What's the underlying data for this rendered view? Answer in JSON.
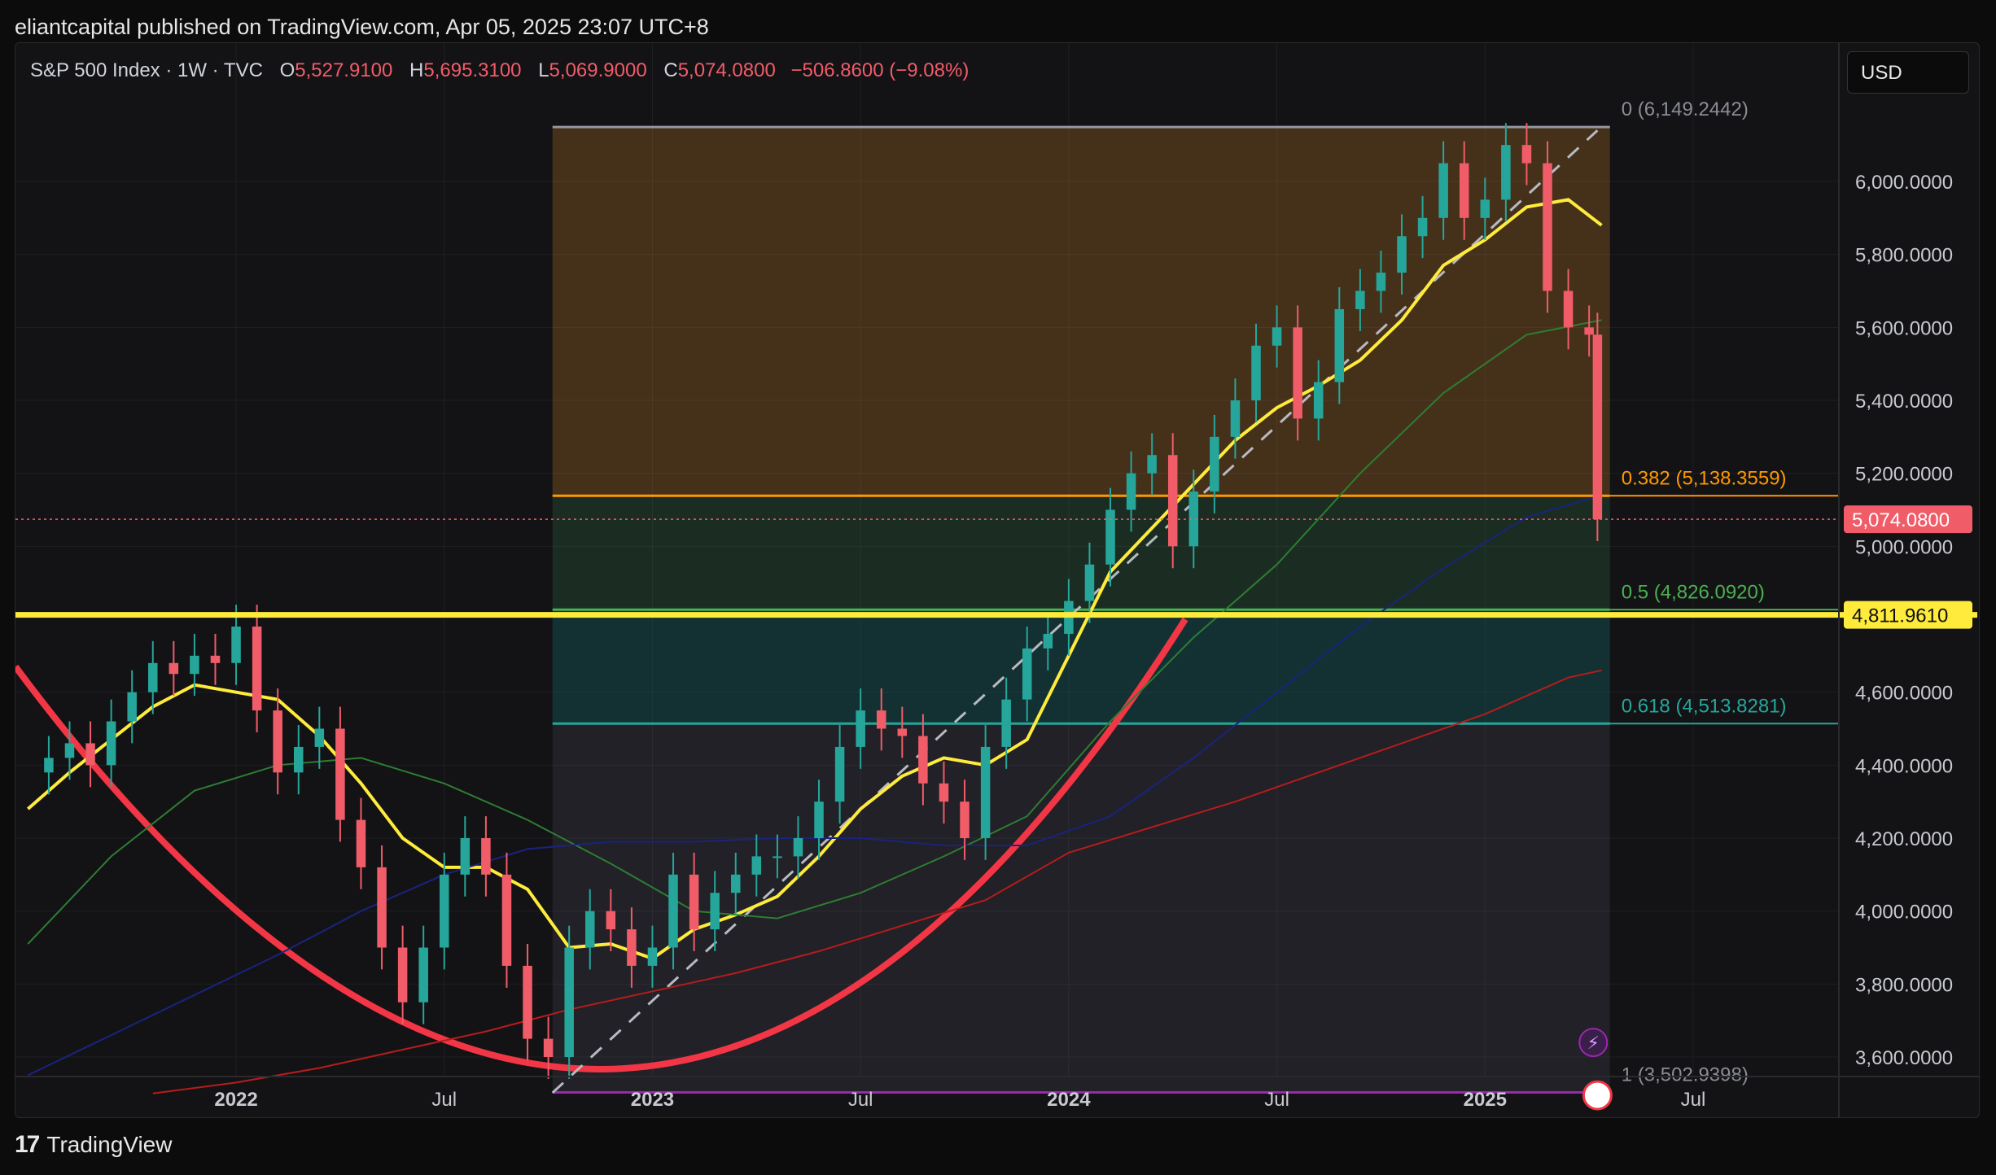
{
  "header": {
    "publisher": "eliantcapital published on TradingView.com, Apr 05, 2025 23:07 UTC+8"
  },
  "legend": {
    "symbol": "S&P 500 Index · 1W · TVC",
    "o_label": "O",
    "o_value": "5,527.9100",
    "h_label": "H",
    "h_value": "5,695.3100",
    "l_label": "L",
    "l_value": "5,069.9000",
    "c_label": "C",
    "c_value": "5,074.0800",
    "change": "−506.8600 (−9.08%)"
  },
  "currency_button": "USD",
  "footer": {
    "logo_glyph": "17",
    "brand": "TradingView"
  },
  "colors": {
    "up": "#26a69a",
    "down": "#f05c68",
    "ma_yellow": "#ffeb3b",
    "ma_green": "#2e7d32",
    "ma_blue": "#1a237e",
    "ma_red": "#b71c1c",
    "fib_orange": "#ff9800",
    "fib_green": "#4caf50",
    "fib_teal": "#26a69a",
    "curve_red": "#f23645"
  },
  "chart_data": {
    "type": "line",
    "title": "S&P 500 Index · 1W · TVC",
    "xlabel": "",
    "ylabel": "",
    "ylim": [
      3500,
      6250
    ],
    "x_tick_labels": [
      "2022",
      "Jul",
      "2023",
      "Jul",
      "2024",
      "Jul",
      "2025",
      "Jul"
    ],
    "x_tick_dates": [
      2022.0,
      2022.5,
      2023.0,
      2023.5,
      2024.0,
      2024.5,
      2025.0,
      2025.5
    ],
    "y_tick_labels": [
      "6,000.0000",
      "5,800.0000",
      "5,600.0000",
      "5,400.0000",
      "5,200.0000",
      "5,000.0000",
      "4,600.0000",
      "4,400.0000",
      "4,200.0000",
      "4,000.0000",
      "3,800.0000",
      "3,600.0000"
    ],
    "y_tick_values": [
      6000,
      5800,
      5600,
      5400,
      5200,
      5000,
      4600,
      4400,
      4200,
      4000,
      3800,
      3600
    ],
    "grid": true,
    "price_line": {
      "value": 5074.08,
      "label": "5,074.0800"
    },
    "horizontal_line": {
      "value": 4811.961,
      "label": "4,811.9610"
    },
    "fib_levels": [
      {
        "ratio": "0",
        "value": 6149.2442,
        "label": "0 (6,149.2442)"
      },
      {
        "ratio": "0.382",
        "value": 5138.3559,
        "label": "0.382 (5,138.3559)"
      },
      {
        "ratio": "0.5",
        "value": 4826.092,
        "label": "0.5 (4,826.0920)"
      },
      {
        "ratio": "0.618",
        "value": 4513.8281,
        "label": "0.618 (4,513.8281)"
      },
      {
        "ratio": "1",
        "value": 3502.9398,
        "label": "1 (3,502.9398)"
      }
    ],
    "fib_range": {
      "x_start": 2022.76,
      "x_end": 2025.3
    },
    "series": [
      {
        "name": "",
        "x": [
          2021.5,
          2021.55,
          2021.6,
          2021.65,
          2021.7,
          2021.75,
          2021.8,
          2021.85,
          2021.9,
          2021.95,
          2022.0,
          2022.05,
          2022.1,
          2022.15,
          2022.2,
          2022.25,
          2022.3,
          2022.35,
          2022.4,
          2022.45,
          2022.5,
          2022.55,
          2022.6,
          2022.65,
          2022.7,
          2022.75,
          2022.8,
          2022.85,
          2022.9,
          2022.95,
          2023.0,
          2023.05,
          2023.1,
          2023.15,
          2023.2,
          2023.25,
          2023.3,
          2023.35,
          2023.4,
          2023.45,
          2023.5,
          2023.55,
          2023.6,
          2023.65,
          2023.7,
          2023.75,
          2023.8,
          2023.85,
          2023.9,
          2023.95,
          2024.0,
          2024.05,
          2024.1,
          2024.15,
          2024.2,
          2024.25,
          2024.3,
          2024.35,
          2024.4,
          2024.45,
          2024.5,
          2024.55,
          2024.6,
          2024.65,
          2024.7,
          2024.75,
          2024.8,
          2024.85,
          2024.9,
          2024.95,
          2025.0,
          2025.05,
          2025.1,
          2025.15,
          2025.2,
          2025.25,
          2025.27
        ],
        "values": [
          4380,
          4420,
          4460,
          4400,
          4520,
          4600,
          4680,
          4650,
          4700,
          4680,
          4780,
          4550,
          4380,
          4450,
          4500,
          4250,
          4120,
          3900,
          3750,
          3900,
          4100,
          4200,
          4100,
          3850,
          3650,
          3600,
          3900,
          4000,
          3950,
          3850,
          3900,
          4100,
          3950,
          4050,
          4100,
          4150,
          4150,
          4200,
          4300,
          4450,
          4550,
          4500,
          4480,
          4350,
          4300,
          4200,
          4450,
          4580,
          4720,
          4760,
          4850,
          4950,
          5100,
          5200,
          5250,
          5000,
          5150,
          5300,
          5400,
          5550,
          5600,
          5350,
          5450,
          5650,
          5700,
          5750,
          5850,
          5900,
          6050,
          5900,
          5950,
          6100,
          6050,
          5700,
          5600,
          5580,
          5074
        ]
      },
      {
        "name": "",
        "x": [
          2021.5,
          2021.6,
          2021.7,
          2021.8,
          2021.9,
          2022.0,
          2022.1,
          2022.2,
          2022.3,
          2022.4,
          2022.5,
          2022.6,
          2022.7,
          2022.8,
          2022.9,
          2023.0,
          2023.1,
          2023.2,
          2023.3,
          2023.4,
          2023.5,
          2023.6,
          2023.7,
          2023.8,
          2023.9,
          2024.0,
          2024.1,
          2024.2,
          2024.3,
          2024.4,
          2024.5,
          2024.6,
          2024.7,
          2024.8,
          2024.9,
          2025.0,
          2025.1,
          2025.2,
          2025.28
        ],
        "values": [
          4280,
          4380,
          4470,
          4560,
          4620,
          4600,
          4580,
          4480,
          4350,
          4200,
          4120,
          4120,
          4060,
          3900,
          3910,
          3870,
          3950,
          3990,
          4040,
          4150,
          4280,
          4370,
          4420,
          4400,
          4470,
          4700,
          4930,
          5050,
          5170,
          5290,
          5380,
          5440,
          5510,
          5620,
          5770,
          5840,
          5930,
          5950,
          5880
        ]
      },
      {
        "name": "",
        "x": [
          2021.5,
          2021.7,
          2021.9,
          2022.1,
          2022.3,
          2022.5,
          2022.7,
          2022.9,
          2023.1,
          2023.3,
          2023.5,
          2023.7,
          2023.9,
          2024.1,
          2024.3,
          2024.5,
          2024.7,
          2024.9,
          2025.1,
          2025.28
        ],
        "values": [
          3910,
          4150,
          4330,
          4400,
          4420,
          4350,
          4250,
          4130,
          4000,
          3980,
          4050,
          4150,
          4260,
          4520,
          4750,
          4950,
          5200,
          5420,
          5580,
          5620
        ]
      },
      {
        "name": "",
        "x": [
          2021.5,
          2021.7,
          2021.9,
          2022.1,
          2022.3,
          2022.5,
          2022.7,
          2022.9,
          2023.1,
          2023.3,
          2023.5,
          2023.7,
          2023.9,
          2024.1,
          2024.3,
          2024.5,
          2024.7,
          2024.9,
          2025.1,
          2025.28
        ],
        "values": [
          3550,
          3660,
          3770,
          3880,
          4000,
          4100,
          4170,
          4190,
          4190,
          4200,
          4200,
          4180,
          4180,
          4260,
          4420,
          4600,
          4780,
          4940,
          5080,
          5140
        ]
      },
      {
        "name": "",
        "x": [
          2021.8,
          2022.0,
          2022.2,
          2022.4,
          2022.6,
          2022.8,
          2023.0,
          2023.2,
          2023.4,
          2023.6,
          2023.8,
          2024.0,
          2024.2,
          2024.4,
          2024.6,
          2024.8,
          2025.0,
          2025.2,
          2025.28
        ],
        "values": [
          3500,
          3530,
          3570,
          3620,
          3670,
          3730,
          3780,
          3830,
          3890,
          3960,
          4030,
          4160,
          4230,
          4300,
          4380,
          4460,
          4540,
          4640,
          4660
        ]
      }
    ]
  }
}
